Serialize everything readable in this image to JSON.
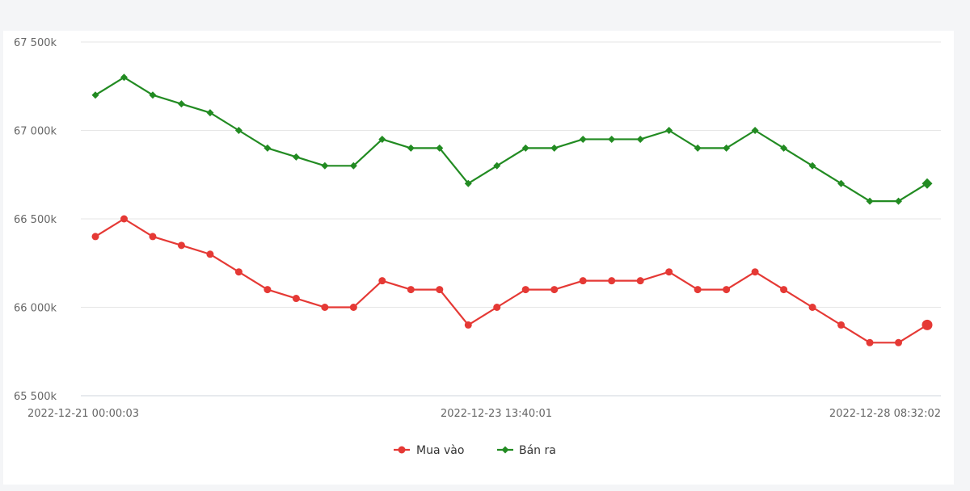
{
  "chart_data": {
    "type": "line",
    "x_labels": [
      "2022-12-21 00:00:03",
      "2022-12-23 13:40:01",
      "2022-12-28 08:32:02"
    ],
    "y_ticks": [
      "67 500k",
      "67 000k",
      "66 500k",
      "66 000k",
      "65 500k"
    ],
    "y_tick_values": [
      67500,
      67000,
      66500,
      66000,
      65500
    ],
    "ylim": [
      65500,
      67500
    ],
    "y_unit": "k",
    "grid": true,
    "legend_position": "bottom-center",
    "series": [
      {
        "name": "Mua vào",
        "color": "#e53935",
        "marker": "circle",
        "values": [
          66400,
          66500,
          66400,
          66350,
          66300,
          66200,
          66100,
          66050,
          66000,
          66000,
          66150,
          66100,
          66100,
          65900,
          66000,
          66100,
          66100,
          66150,
          66150,
          66150,
          66200,
          66100,
          66100,
          66200,
          66100,
          66000,
          65900,
          65800,
          65800,
          65900
        ]
      },
      {
        "name": "Bán ra",
        "color": "#228b22",
        "marker": "diamond",
        "values": [
          67200,
          67300,
          67200,
          67150,
          67100,
          67000,
          66900,
          66850,
          66800,
          66800,
          66950,
          66900,
          66900,
          66700,
          66800,
          66900,
          66900,
          66950,
          66950,
          66950,
          67000,
          66900,
          66900,
          67000,
          66900,
          66800,
          66700,
          66600,
          66600,
          66700
        ]
      }
    ]
  }
}
